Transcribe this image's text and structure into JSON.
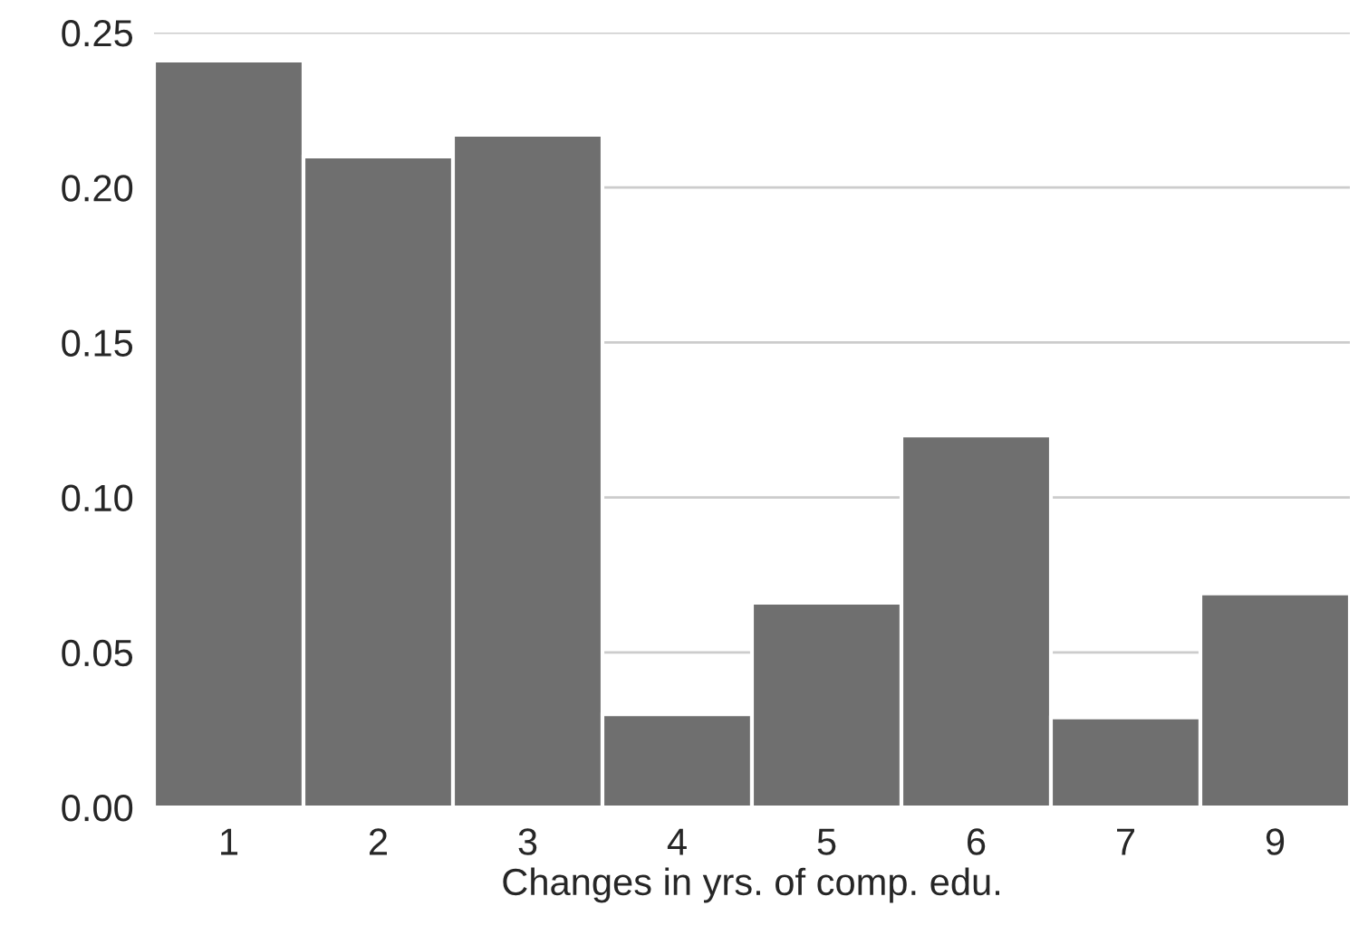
{
  "chart_data": {
    "type": "bar",
    "xlabel": "Changes in yrs. of comp. edu.",
    "categories": [
      "1",
      "2",
      "3",
      "4",
      "5",
      "6",
      "7",
      "9"
    ],
    "values": [
      0.241,
      0.21,
      0.217,
      0.03,
      0.066,
      0.12,
      0.029,
      0.069
    ],
    "color": "#6f6f6f",
    "ylim": [
      0,
      0.25
    ],
    "yticks": [
      {
        "value": 0,
        "label": "0.00"
      },
      {
        "value": 0.05,
        "label": "0.05"
      },
      {
        "value": 0.1,
        "label": "0.10"
      },
      {
        "value": 0.15,
        "label": "0.15"
      },
      {
        "value": 0.2,
        "label": "0.20"
      },
      {
        "value": 0.25,
        "label": "0.25"
      }
    ],
    "grid": "y"
  }
}
